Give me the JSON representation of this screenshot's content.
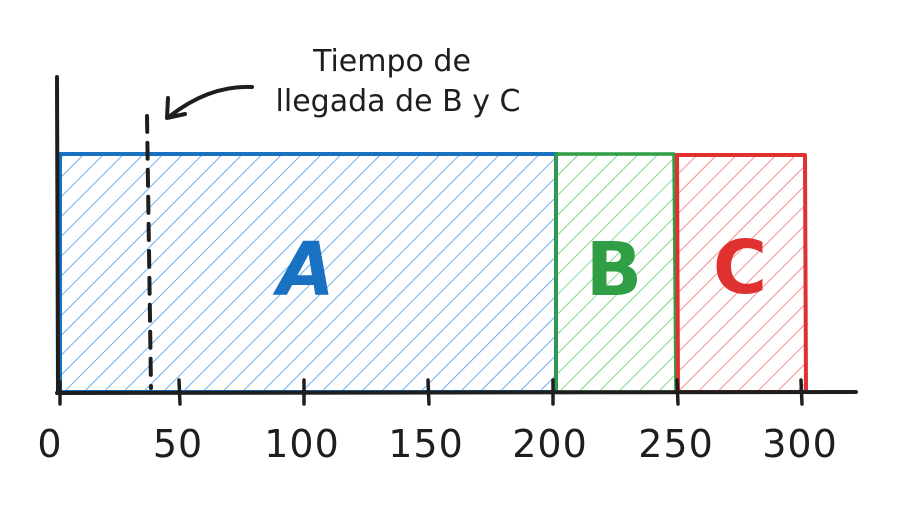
{
  "annotation": {
    "line1": "Tiempo de",
    "line2": "llegada de B y C"
  },
  "axis": {
    "ticks": [
      "0",
      "50",
      "100",
      "150",
      "200",
      "250",
      "300"
    ]
  },
  "blocks": [
    {
      "label": "A",
      "start": 0,
      "end": 200,
      "color": "#1971c2",
      "fill": "#4a9be8"
    },
    {
      "label": "B",
      "start": 200,
      "end": 250,
      "color": "#2f9e44",
      "fill": "#5ccf6a"
    },
    {
      "label": "C",
      "start": 250,
      "end": 300,
      "color": "#e03131",
      "fill": "#f47474"
    }
  ],
  "arrival_time": 38,
  "colors": {
    "ink": "#1e1e1e"
  }
}
